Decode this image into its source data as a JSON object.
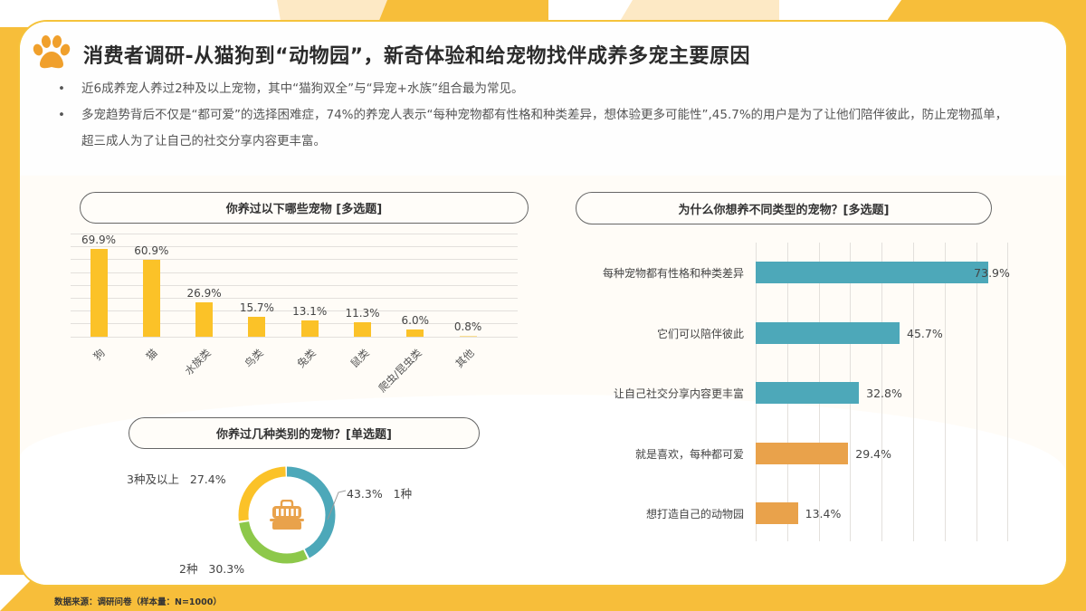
{
  "header": {
    "icon": "paw-icon",
    "title": "消费者调研-从猫狗到“动物园”，新奇体验和给宠物找伴成养多宠主要原因"
  },
  "bullets": [
    "近6成养宠人养过2种及以上宠物，其中“猫狗双全”与“异宠+水族”组合最为常见。",
    "多宠趋势背后不仅是“都可爱”的选择困难症，74%的养宠人表示“每种宠物都有性格和种类差异，想体验更多可能性”,45.7%的用户是为了让他们陪伴彼此，防止宠物孤单，超三成人为了让自己的社交分享内容更丰富。"
  ],
  "colors": {
    "background_yellow": "#F7BE3A",
    "bar_yellow": "#FBC228",
    "teal": "#4DA8B9",
    "orange": "#E9A24B",
    "green": "#8DC84A",
    "donut_yellow": "#FBC228"
  },
  "chart_data": [
    {
      "type": "bar",
      "title": "你养过以下哪些宠物 [多选题]",
      "categories": [
        "狗",
        "猫",
        "水族类",
        "鸟类",
        "兔类",
        "鼠类",
        "爬虫/昆虫类",
        "其他"
      ],
      "values": [
        69.9,
        60.9,
        26.9,
        15.7,
        13.1,
        11.3,
        6.0,
        0.8
      ],
      "value_labels": [
        "69.9%",
        "60.9%",
        "26.9%",
        "15.7%",
        "13.1%",
        "11.3%",
        "6.0%",
        "0.8%"
      ],
      "xlabel": "",
      "ylabel": "",
      "ylim": [
        0,
        80
      ],
      "grid": true,
      "unit": "%"
    },
    {
      "type": "pie",
      "donut": true,
      "title": "你养过几种类别的宠物？[单选题]",
      "center_icon": "pet-carrier-icon",
      "categories": [
        "1种",
        "2种",
        "3种及以上"
      ],
      "values": [
        43.3,
        30.3,
        27.4
      ],
      "value_labels": [
        "43.3%",
        "30.3%",
        "27.4%"
      ],
      "colors": [
        "#4DA8B9",
        "#8DC84A",
        "#FBC228"
      ]
    },
    {
      "type": "bar",
      "orientation": "horizontal",
      "title": "为什么你想养不同类型的宠物？[多选题]",
      "categories": [
        "每种宠物都有性格和种类差异",
        "它们可以陪伴彼此",
        "让自己社交分享内容更丰富",
        "就是喜欢，每种都可爱",
        "想打造自己的动物园"
      ],
      "values": [
        73.9,
        45.7,
        32.8,
        29.4,
        13.4
      ],
      "value_labels": [
        "73.9%",
        "45.7%",
        "32.8%",
        "29.4%",
        "13.4%"
      ],
      "colors": [
        "#4DA8B9",
        "#4DA8B9",
        "#4DA8B9",
        "#E9A24B",
        "#E9A24B"
      ],
      "xlim": [
        0,
        80
      ],
      "grid": true,
      "unit": "%"
    }
  ],
  "footer": {
    "source": "数据来源：调研问卷（样本量：N=1000）"
  }
}
